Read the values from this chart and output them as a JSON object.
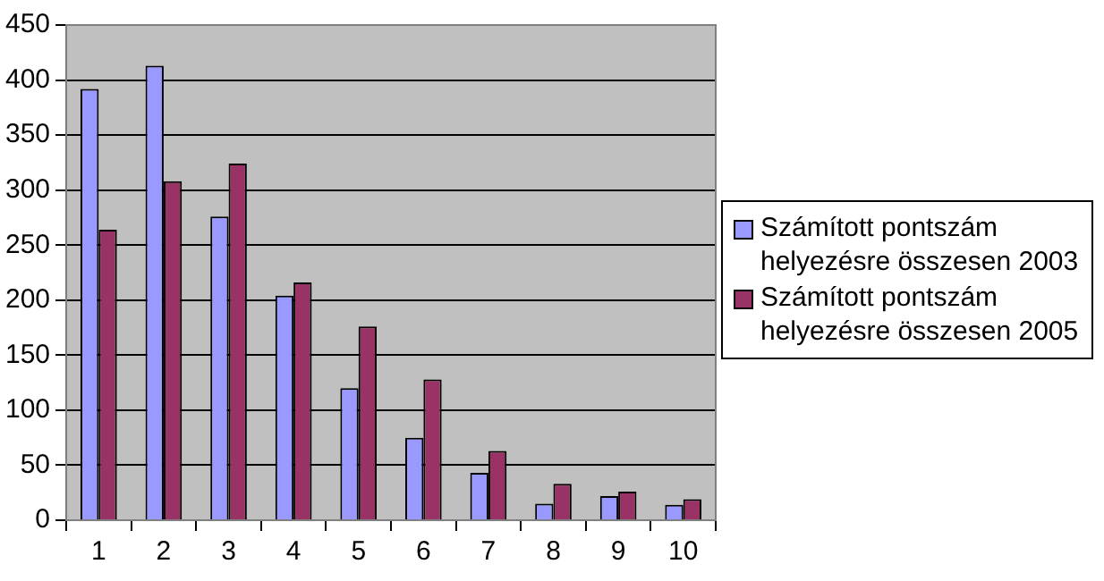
{
  "chart_data": {
    "type": "bar",
    "categories": [
      "1",
      "2",
      "3",
      "4",
      "5",
      "6",
      "7",
      "8",
      "9",
      "10"
    ],
    "series": [
      {
        "name": "Számított pontszám helyezésre összesen 2003",
        "color": "#9999ff",
        "values": [
          392,
          413,
          276,
          204,
          120,
          75,
          43,
          15,
          22,
          14
        ]
      },
      {
        "name": "Számított pontszám helyezésre összesen 2005",
        "color": "#993366",
        "values": [
          264,
          308,
          324,
          216,
          176,
          128,
          63,
          33,
          26,
          19
        ]
      }
    ],
    "ylim": [
      0,
      450
    ],
    "yticks": [
      0,
      50,
      100,
      150,
      200,
      250,
      300,
      350,
      400,
      450
    ],
    "grid": "y",
    "legend": "right"
  }
}
